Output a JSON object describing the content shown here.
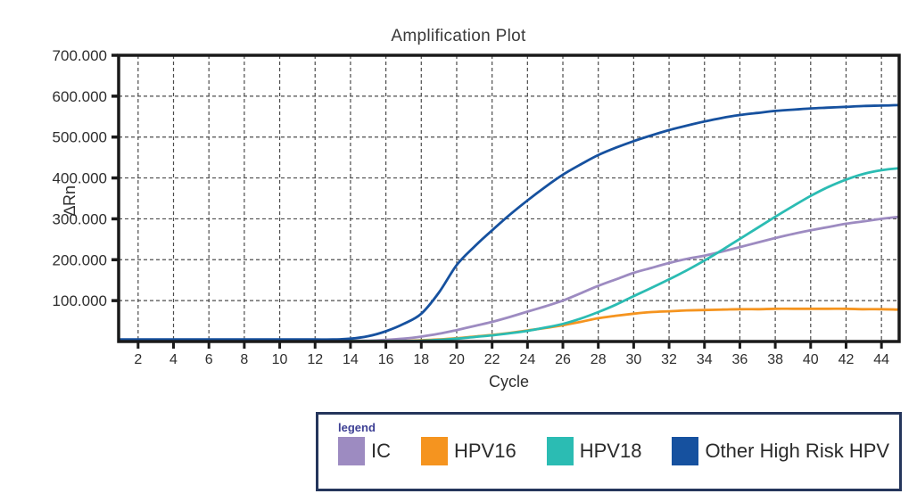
{
  "legend": {
    "title": "legend"
  },
  "chart_data": {
    "type": "line",
    "title": "Amplification Plot",
    "xlabel": "Cycle",
    "ylabel": "∆Rn",
    "xlim": [
      1,
      45
    ],
    "ylim": [
      0,
      700
    ],
    "grid": true,
    "grid_style": "dashed",
    "legend_position": "bottom",
    "x_ticks": [
      2,
      4,
      6,
      8,
      10,
      12,
      14,
      16,
      18,
      20,
      22,
      24,
      26,
      28,
      30,
      32,
      34,
      36,
      38,
      40,
      42,
      44
    ],
    "y_tick_values": [
      100,
      200,
      300,
      400,
      500,
      600,
      700
    ],
    "y_tick_labels": [
      "100.000",
      "200.000",
      "300.000",
      "400.000",
      "500.000",
      "600.000",
      "700.000"
    ],
    "x": [
      1,
      2,
      3,
      4,
      5,
      6,
      7,
      8,
      9,
      10,
      11,
      12,
      13,
      14,
      15,
      16,
      17,
      18,
      19,
      20,
      21,
      22,
      23,
      24,
      25,
      26,
      27,
      28,
      29,
      30,
      31,
      32,
      33,
      34,
      35,
      36,
      37,
      38,
      39,
      40,
      41,
      42,
      43,
      44,
      45
    ],
    "series": [
      {
        "name": "IC",
        "color": "#9d8bc1",
        "values": [
          2,
          2,
          2,
          2,
          2,
          2,
          2,
          2,
          2,
          2,
          2,
          2,
          2,
          2,
          2,
          4,
          7,
          12,
          19,
          28,
          38,
          48,
          60,
          73,
          86,
          100,
          118,
          136,
          152,
          168,
          180,
          192,
          202,
          210,
          220,
          231,
          242,
          253,
          263,
          272,
          280,
          288,
          294,
          300,
          305
        ]
      },
      {
        "name": "HPV16",
        "color": "#f5941f",
        "values": [
          1,
          1,
          1,
          1,
          1,
          1,
          1,
          1,
          1,
          1,
          1,
          1,
          1,
          1,
          1,
          1,
          1,
          3,
          5,
          8,
          12,
          16,
          21,
          27,
          33,
          40,
          48,
          57,
          63,
          68,
          72,
          74,
          76,
          77,
          78,
          79,
          79,
          80,
          80,
          80,
          80,
          80,
          79,
          79,
          78
        ]
      },
      {
        "name": "HPV18",
        "color": "#2bbcb3",
        "values": [
          1,
          1,
          1,
          1,
          1,
          1,
          1,
          1,
          1,
          1,
          1,
          1,
          1,
          1,
          1,
          1,
          1,
          2,
          4,
          7,
          11,
          15,
          20,
          26,
          34,
          43,
          56,
          72,
          90,
          111,
          131,
          152,
          174,
          198,
          224,
          251,
          278,
          305,
          331,
          356,
          378,
          396,
          410,
          419,
          424
        ]
      },
      {
        "name": "Other High Risk HPV",
        "color": "#16519f",
        "values": [
          5,
          5,
          5,
          5,
          5,
          5,
          5,
          5,
          5,
          5,
          5,
          5,
          5,
          7,
          13,
          25,
          43,
          68,
          120,
          187,
          232,
          272,
          310,
          345,
          378,
          408,
          433,
          456,
          474,
          490,
          504,
          517,
          528,
          538,
          547,
          554,
          559,
          564,
          567,
          570,
          572,
          574,
          576,
          577,
          578
        ]
      }
    ]
  }
}
